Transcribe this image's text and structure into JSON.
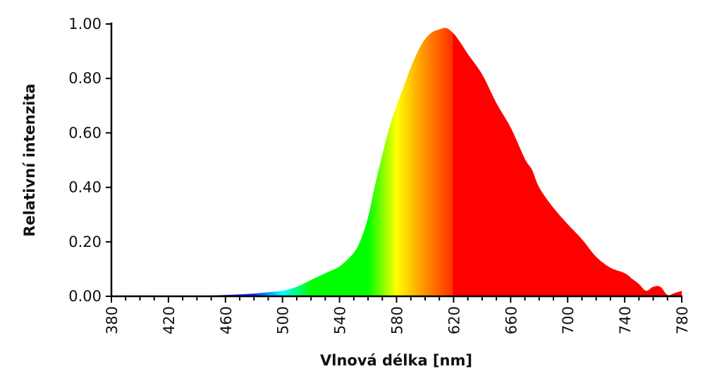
{
  "chart_data": {
    "type": "area",
    "title": "",
    "xlabel": "Vlnová délka [nm]",
    "ylabel": "Relativní intenzita",
    "xlim": [
      380,
      780
    ],
    "ylim": [
      0,
      1
    ],
    "grid": false,
    "x_ticks": [
      "380",
      "420",
      "460",
      "500",
      "540",
      "580",
      "620",
      "660",
      "700",
      "740",
      "780"
    ],
    "x_minor_tick_step": 10,
    "y_ticks": [
      "0.00",
      "0.20",
      "0.40",
      "0.60",
      "0.80",
      "1.00"
    ],
    "fill": "spectral gradient (violet → blue → cyan → green → yellow → orange → red)",
    "gradient_stops": [
      {
        "nm": 380,
        "color": "#7a00c8"
      },
      {
        "nm": 440,
        "color": "#5a00d0"
      },
      {
        "nm": 480,
        "color": "#0030ff"
      },
      {
        "nm": 500,
        "color": "#00ffff"
      },
      {
        "nm": 520,
        "color": "#00ff00"
      },
      {
        "nm": 560,
        "color": "#00ff00"
      },
      {
        "nm": 580,
        "color": "#ffff00"
      },
      {
        "nm": 600,
        "color": "#ff9000"
      },
      {
        "nm": 619,
        "color": "#ff3000"
      },
      {
        "nm": 620,
        "color": "#ff0000"
      },
      {
        "nm": 780,
        "color": "#ff0000"
      }
    ],
    "x": [
      380,
      390,
      400,
      410,
      415,
      420,
      440,
      450,
      460,
      470,
      480,
      490,
      500,
      510,
      520,
      530,
      540,
      550,
      555,
      560,
      565,
      570,
      575,
      580,
      585,
      590,
      595,
      600,
      605,
      610,
      615,
      620,
      625,
      630,
      640,
      650,
      660,
      670,
      675,
      680,
      690,
      700,
      710,
      720,
      730,
      740,
      745,
      750,
      755,
      760,
      765,
      770,
      775,
      780
    ],
    "values": [
      0.003,
      0.002,
      0.003,
      0.002,
      0.0,
      0.0,
      0.0,
      0.003,
      0.005,
      0.007,
      0.01,
      0.015,
      0.02,
      0.035,
      0.06,
      0.085,
      0.11,
      0.16,
      0.21,
      0.29,
      0.41,
      0.52,
      0.62,
      0.7,
      0.77,
      0.84,
      0.9,
      0.945,
      0.97,
      0.98,
      0.985,
      0.965,
      0.93,
      0.89,
      0.815,
      0.71,
      0.62,
      0.505,
      0.465,
      0.4,
      0.325,
      0.265,
      0.21,
      0.145,
      0.105,
      0.085,
      0.065,
      0.045,
      0.02,
      0.035,
      0.035,
      0.005,
      0.012,
      0.02
    ]
  }
}
